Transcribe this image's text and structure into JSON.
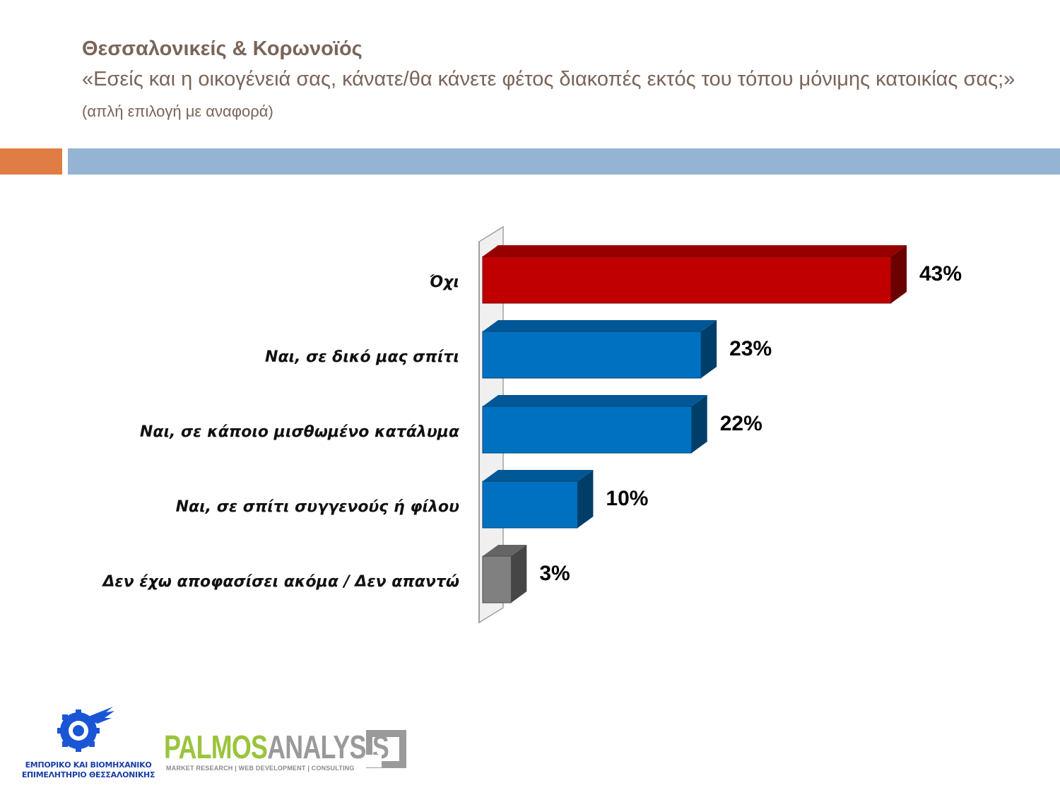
{
  "header": {
    "title": "Θεσσαλονικείς & Κορωνοϊός",
    "question": "«Εσείς και η οικογένειά σας, κάνατε/θα κάνετε φέτος διακοπές εκτός του τόπου μόνιμης κατοικίας σας;»",
    "note": "(απλή επιλογή με αναφορά)"
  },
  "colors": {
    "accent_orange": "#e07d44",
    "accent_blue": "#95b3d3",
    "bar_red": "#c00000",
    "bar_blue": "#0070c0",
    "bar_gray": "#808080"
  },
  "chart_data": {
    "type": "bar",
    "orientation": "horizontal",
    "categories": [
      "Όχι",
      "Ναι, σε δικό μας σπίτι",
      "Ναι, σε κάποιο μισθωμένο κατάλυμα",
      "Ναι, σε σπίτι συγγενούς ή φίλου",
      "Δεν έχω αποφασίσει ακόμα / Δεν απαντώ"
    ],
    "values": [
      43,
      23,
      22,
      10,
      3
    ],
    "value_labels": [
      "43%",
      "23%",
      "22%",
      "10%",
      "3%"
    ],
    "bar_colors": [
      "#c00000",
      "#0070c0",
      "#0070c0",
      "#0070c0",
      "#808080"
    ],
    "unit": "%",
    "xlim": [
      0,
      43
    ],
    "grid": false,
    "legend": "none"
  },
  "footer": {
    "chamber_name_line1": "ΕΜΠΟΡΙΚΟ ΚΑΙ ΒΙΟΜΗΧΑΝΙΚΟ",
    "chamber_name_line2": "ΕΠΙΜΕΛΗΤΗΡΙΟ ΘΕΣΣΑΛΟΝΙΚΗΣ",
    "palmos_part1": "PALMOS",
    "palmos_part2": "ANALYSIS",
    "palmos_tagline": "MARKET RESEARCH | WEB DEVELOPMENT | CONSULTING"
  }
}
